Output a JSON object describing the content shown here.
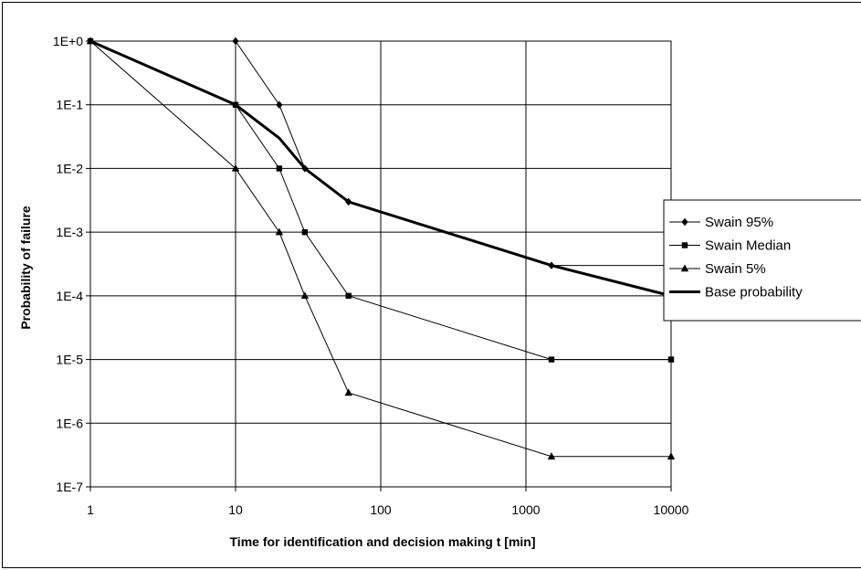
{
  "chart_data": {
    "type": "line",
    "title": "",
    "xlabel": "Time for identification and decision making t [min]",
    "ylabel": "Probability of failure",
    "x_scale": "log",
    "y_scale": "log",
    "xlim": [
      1,
      10000
    ],
    "ylim": [
      1e-07,
      1
    ],
    "x_ticks": [
      {
        "value": 1,
        "label": "1"
      },
      {
        "value": 10,
        "label": "10"
      },
      {
        "value": 100,
        "label": "100"
      },
      {
        "value": 1000,
        "label": "1000"
      },
      {
        "value": 10000,
        "label": "10000"
      }
    ],
    "y_ticks": [
      {
        "value": 1,
        "label": "1E+0"
      },
      {
        "value": 0.1,
        "label": "1E-1"
      },
      {
        "value": 0.01,
        "label": "1E-2"
      },
      {
        "value": 0.001,
        "label": "1E-3"
      },
      {
        "value": 0.0001,
        "label": "1E-4"
      },
      {
        "value": 1e-05,
        "label": "1E-5"
      },
      {
        "value": 1e-06,
        "label": "1E-6"
      },
      {
        "value": 1e-07,
        "label": "1E-7"
      }
    ],
    "grid": true,
    "legend_position": "right",
    "series": [
      {
        "name": "Swain 95%",
        "marker": "diamond",
        "color": "#000000",
        "width": 1,
        "x": [
          1,
          10,
          20,
          30,
          60,
          1500,
          10000
        ],
        "y": [
          1,
          1,
          0.1,
          0.01,
          0.003,
          0.0003,
          0.0003
        ]
      },
      {
        "name": "Swain Median",
        "marker": "square",
        "color": "#000000",
        "width": 1,
        "x": [
          1,
          10,
          20,
          30,
          60,
          1500,
          10000
        ],
        "y": [
          1,
          0.1,
          0.01,
          0.001,
          0.0001,
          1e-05,
          1e-05
        ]
      },
      {
        "name": "Swain 5%",
        "marker": "triangle",
        "color": "#000000",
        "width": 1,
        "x": [
          1,
          10,
          20,
          30,
          60,
          1500,
          10000
        ],
        "y": [
          1,
          0.01,
          0.001,
          0.0001,
          3e-06,
          3e-07,
          3e-07
        ]
      },
      {
        "name": "Base probability",
        "marker": "none",
        "color": "#000000",
        "width": 3,
        "x": [
          1,
          10,
          20,
          30,
          60,
          1500,
          10000
        ],
        "y": [
          1,
          0.1,
          0.03,
          0.01,
          0.003,
          0.0003,
          0.0001
        ]
      }
    ]
  }
}
